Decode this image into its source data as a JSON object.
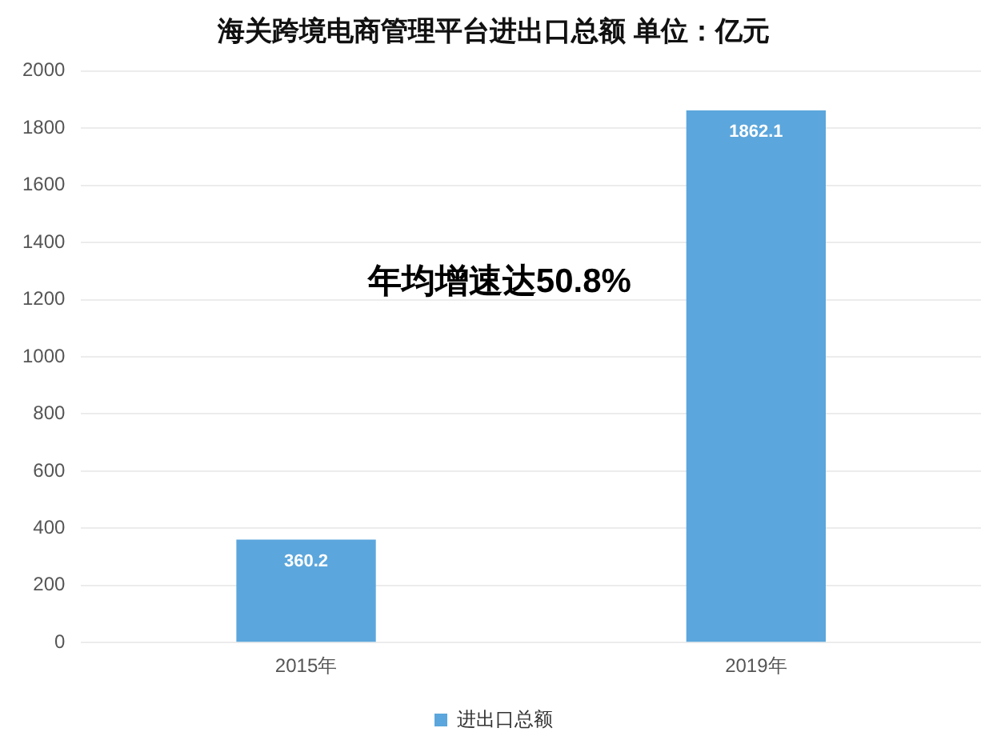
{
  "chart_data": {
    "type": "bar",
    "title": "海关跨境电商管理平台进出口总额 单位：亿元",
    "categories": [
      "2015年",
      "2019年"
    ],
    "series": [
      {
        "name": "进出口总额",
        "color": "#5ba6dc",
        "values": [
          360.2,
          1862.1
        ]
      }
    ],
    "ylim": [
      0,
      2000
    ],
    "yticks": [
      0,
      200,
      400,
      600,
      800,
      1000,
      1200,
      1400,
      1600,
      1800,
      2000
    ],
    "grid": "y",
    "legend": "bottom",
    "data_labels": true,
    "annotations": [
      "年均增速达50.8%"
    ]
  }
}
